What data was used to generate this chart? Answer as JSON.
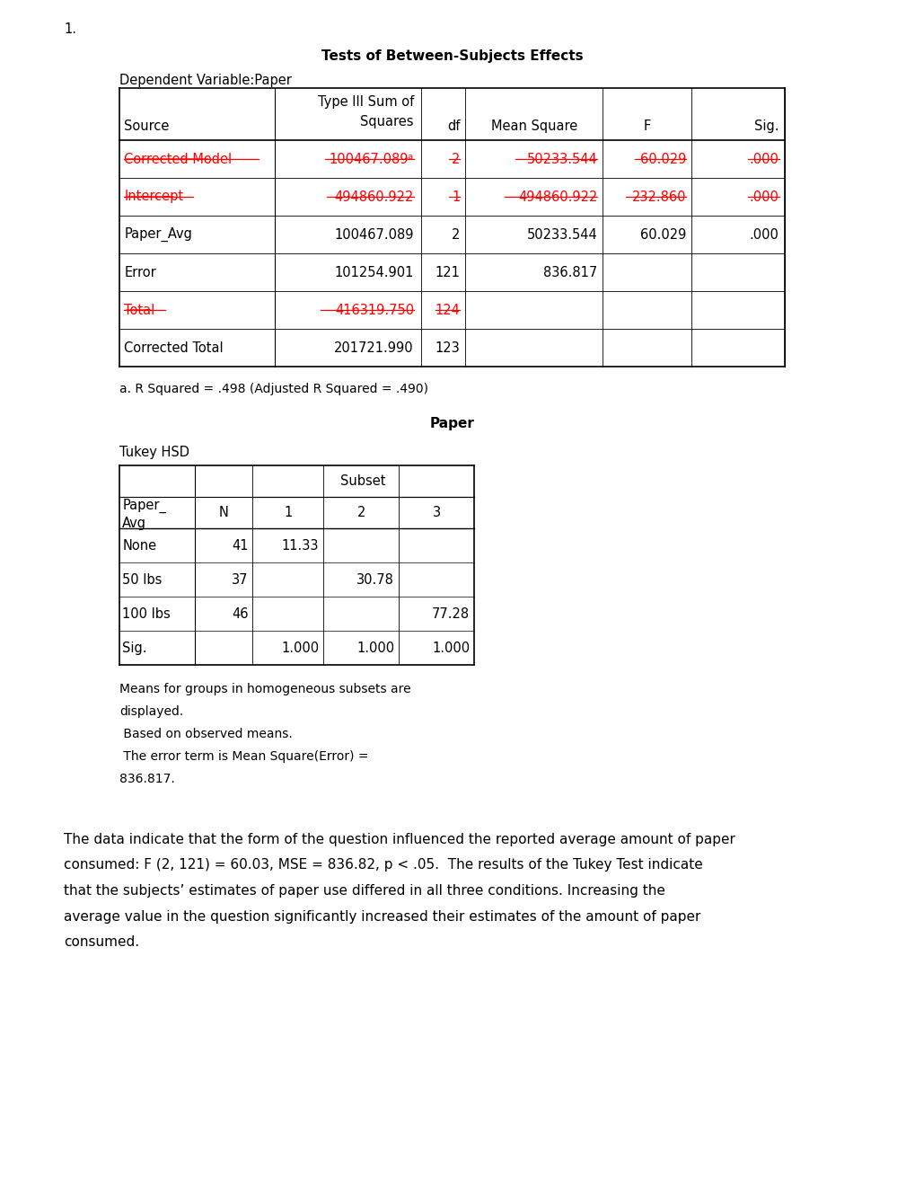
{
  "title_number": "1.",
  "table1_title": "Tests of Between-Subjects Effects",
  "table1_dep_var": "Dependent Variable:Paper",
  "table1_headers": [
    "Source",
    "Type III Sum of\nSquares",
    "df",
    "Mean Square",
    "F",
    "Sig."
  ],
  "table1_rows": [
    {
      "source": "Corrected Model",
      "squares": "100467.089ᵃ",
      "df": "2",
      "mean_sq": "50233.544",
      "F": "60.029",
      "sig": ".000",
      "strikethrough": true,
      "red": true
    },
    {
      "source": "Intercept",
      "squares": "494860.922",
      "df": "1",
      "mean_sq": "494860.922",
      "F": "232.860",
      "sig": ".000",
      "strikethrough": true,
      "red": true
    },
    {
      "source": "Paper_Avg",
      "squares": "100467.089",
      "df": "2",
      "mean_sq": "50233.544",
      "F": "60.029",
      "sig": ".000",
      "strikethrough": false,
      "red": false
    },
    {
      "source": "Error",
      "squares": "101254.901",
      "df": "121",
      "mean_sq": "836.817",
      "F": "",
      "sig": "",
      "strikethrough": false,
      "red": false
    },
    {
      "source": "Total",
      "squares": "416319.750",
      "df": "124",
      "mean_sq": "",
      "F": "",
      "sig": "",
      "strikethrough": true,
      "red": true
    },
    {
      "source": "Corrected Total",
      "squares": "201721.990",
      "df": "123",
      "mean_sq": "",
      "F": "",
      "sig": "",
      "strikethrough": false,
      "red": false
    }
  ],
  "table1_footnote": "a. R Squared = .498 (Adjusted R Squared = .490)",
  "table2_title": "Paper",
  "table2_subtitle": "Tukey HSD",
  "table2_headers_row1": [
    "Paper_\nAvg",
    "N",
    "Subset"
  ],
  "table2_headers_row2": [
    "",
    "",
    "1",
    "2",
    "3"
  ],
  "table2_rows": [
    {
      "group": "None",
      "N": "41",
      "s1": "11.33",
      "s2": "",
      "s3": ""
    },
    {
      "group": "50 lbs",
      "N": "37",
      "s1": "",
      "s2": "30.78",
      "s3": ""
    },
    {
      "group": "100 lbs",
      "N": "46",
      "s1": "",
      "s2": "",
      "s3": "77.28"
    },
    {
      "group": "Sig.",
      "N": "",
      "s1": "1.000",
      "s2": "1.000",
      "s3": "1.000"
    }
  ],
  "table2_footnotes": [
    "Means for groups in homogeneous subsets are",
    "displayed.",
    " Based on observed means.",
    " The error term is Mean Square(Error) =",
    "836.817."
  ],
  "paragraph": "The data indicate that the form of the question influenced the reported average amount of paper consumed: F (2, 121) = 60.03, MSE = 836.82, p < .05.  The results of the Tukey Test indicate that the subjects’ estimates of paper use differed in all three conditions. Increasing the average value in the question significantly increased their estimates of the amount of paper consumed.",
  "bg_color": "#ffffff",
  "text_color": "#000000",
  "red_color": "#ff0000"
}
